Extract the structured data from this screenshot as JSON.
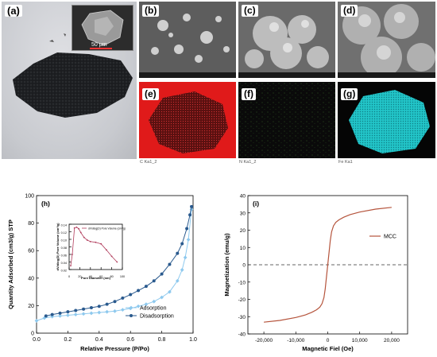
{
  "panel_labels": {
    "a": "(a)",
    "b": "(b)",
    "c": "(c)",
    "d": "(d)",
    "e": "(e)",
    "f": "(f)",
    "g": "(g)",
    "h": "(h)",
    "i": "(i)"
  },
  "inset_scale": "50 μm",
  "eds_captions": {
    "e": "C Ka1_2",
    "f": "N Ka1_2",
    "g": "Fe Ka1"
  },
  "colors": {
    "adsorption": "#8ec9ee",
    "desorption": "#2a5a8e",
    "pore": "#b03a5a",
    "magnet": "#b5543c",
    "carbon_map": "#e01a1a",
    "iron_map": "#22c5c8"
  },
  "chart_data": [
    {
      "type": "line",
      "xlabel": "Relative Pressure (P/Po)",
      "ylabel": "Quantity Adsorbed (cm3/g) STP",
      "xlim": [
        0.0,
        1.0
      ],
      "ylim": [
        0,
        100
      ],
      "xticks": [
        "0.0",
        "0.2",
        "0.4",
        "0.6",
        "0.8",
        "1.0"
      ],
      "yticks": [
        "0",
        "20",
        "40",
        "60",
        "80",
        "100"
      ],
      "legend_position": "bottom-right",
      "series": [
        {
          "name": "Adsorption",
          "x": [
            0.0,
            0.05,
            0.1,
            0.15,
            0.2,
            0.25,
            0.3,
            0.35,
            0.4,
            0.45,
            0.5,
            0.55,
            0.6,
            0.65,
            0.7,
            0.75,
            0.8,
            0.85,
            0.9,
            0.93,
            0.95,
            0.97,
            0.99
          ],
          "y": [
            9,
            11,
            12,
            12.5,
            13,
            13.5,
            14,
            14.5,
            15,
            15.5,
            16,
            17,
            18,
            19.5,
            21,
            23,
            26,
            30,
            38,
            46,
            55,
            68,
            90
          ]
        },
        {
          "name": "Disadsorption",
          "x": [
            0.06,
            0.1,
            0.15,
            0.2,
            0.25,
            0.3,
            0.35,
            0.4,
            0.45,
            0.5,
            0.55,
            0.6,
            0.65,
            0.7,
            0.75,
            0.8,
            0.85,
            0.9,
            0.93,
            0.96,
            0.98,
            0.99
          ],
          "y": [
            12.5,
            13.5,
            14.5,
            15.5,
            16.5,
            17.5,
            18.5,
            19.5,
            21,
            23,
            25.5,
            28,
            31,
            34,
            38,
            43,
            50,
            58,
            65,
            76,
            86,
            92
          ]
        }
      ],
      "inset": {
        "type": "line",
        "legend": "dV/dlog(D) Pore Volume (cm³/g)",
        "xlabel": "Pore Diameter (nm)",
        "ylabel": "dV/dlog(D) Pore Volume (cm³/g)",
        "xlim": [
          0,
          100
        ],
        "ylim": [
          0.02,
          0.14
        ],
        "xticks": [
          "0",
          "20",
          "40",
          "60",
          "80",
          "100"
        ],
        "yticks": [
          "0.02",
          "0.04",
          "0.06",
          "0.08",
          "0.10",
          "0.12",
          "0.14"
        ],
        "x": [
          3,
          6,
          10,
          14,
          18,
          22,
          28,
          34,
          40,
          50,
          60,
          70,
          80,
          90
        ],
        "y": [
          0.03,
          0.06,
          0.13,
          0.132,
          0.128,
          0.118,
          0.105,
          0.098,
          0.094,
          0.092,
          0.088,
          0.072,
          0.055,
          0.04
        ]
      }
    },
    {
      "type": "line",
      "xlabel": "Magnetic Fiel (Oe)",
      "ylabel": "Magnetization (emu/g)",
      "xlim": [
        -25000,
        25000
      ],
      "ylim": [
        -40,
        40
      ],
      "xticks": [
        "-20,000",
        "-10,000",
        "0",
        "10,000",
        "20,000"
      ],
      "yticks": [
        "-40",
        "-30",
        "-20",
        "-10",
        "0",
        "10",
        "20",
        "30",
        "40"
      ],
      "legend_position": "right",
      "series": [
        {
          "name": "MCC",
          "x": [
            -20000,
            -15000,
            -10000,
            -7000,
            -5000,
            -3500,
            -2500,
            -1800,
            -1200,
            -800,
            -400,
            0,
            400,
            800,
            1200,
            1800,
            2500,
            3500,
            5000,
            7000,
            10000,
            15000,
            20000
          ],
          "y": [
            -33.2,
            -32.2,
            -30.5,
            -29,
            -27.5,
            -26,
            -24.5,
            -22.5,
            -19,
            -14,
            -7,
            0,
            7,
            14,
            19,
            22.5,
            24.5,
            26,
            27.5,
            29,
            30.5,
            32.2,
            33.2
          ]
        }
      ]
    }
  ]
}
